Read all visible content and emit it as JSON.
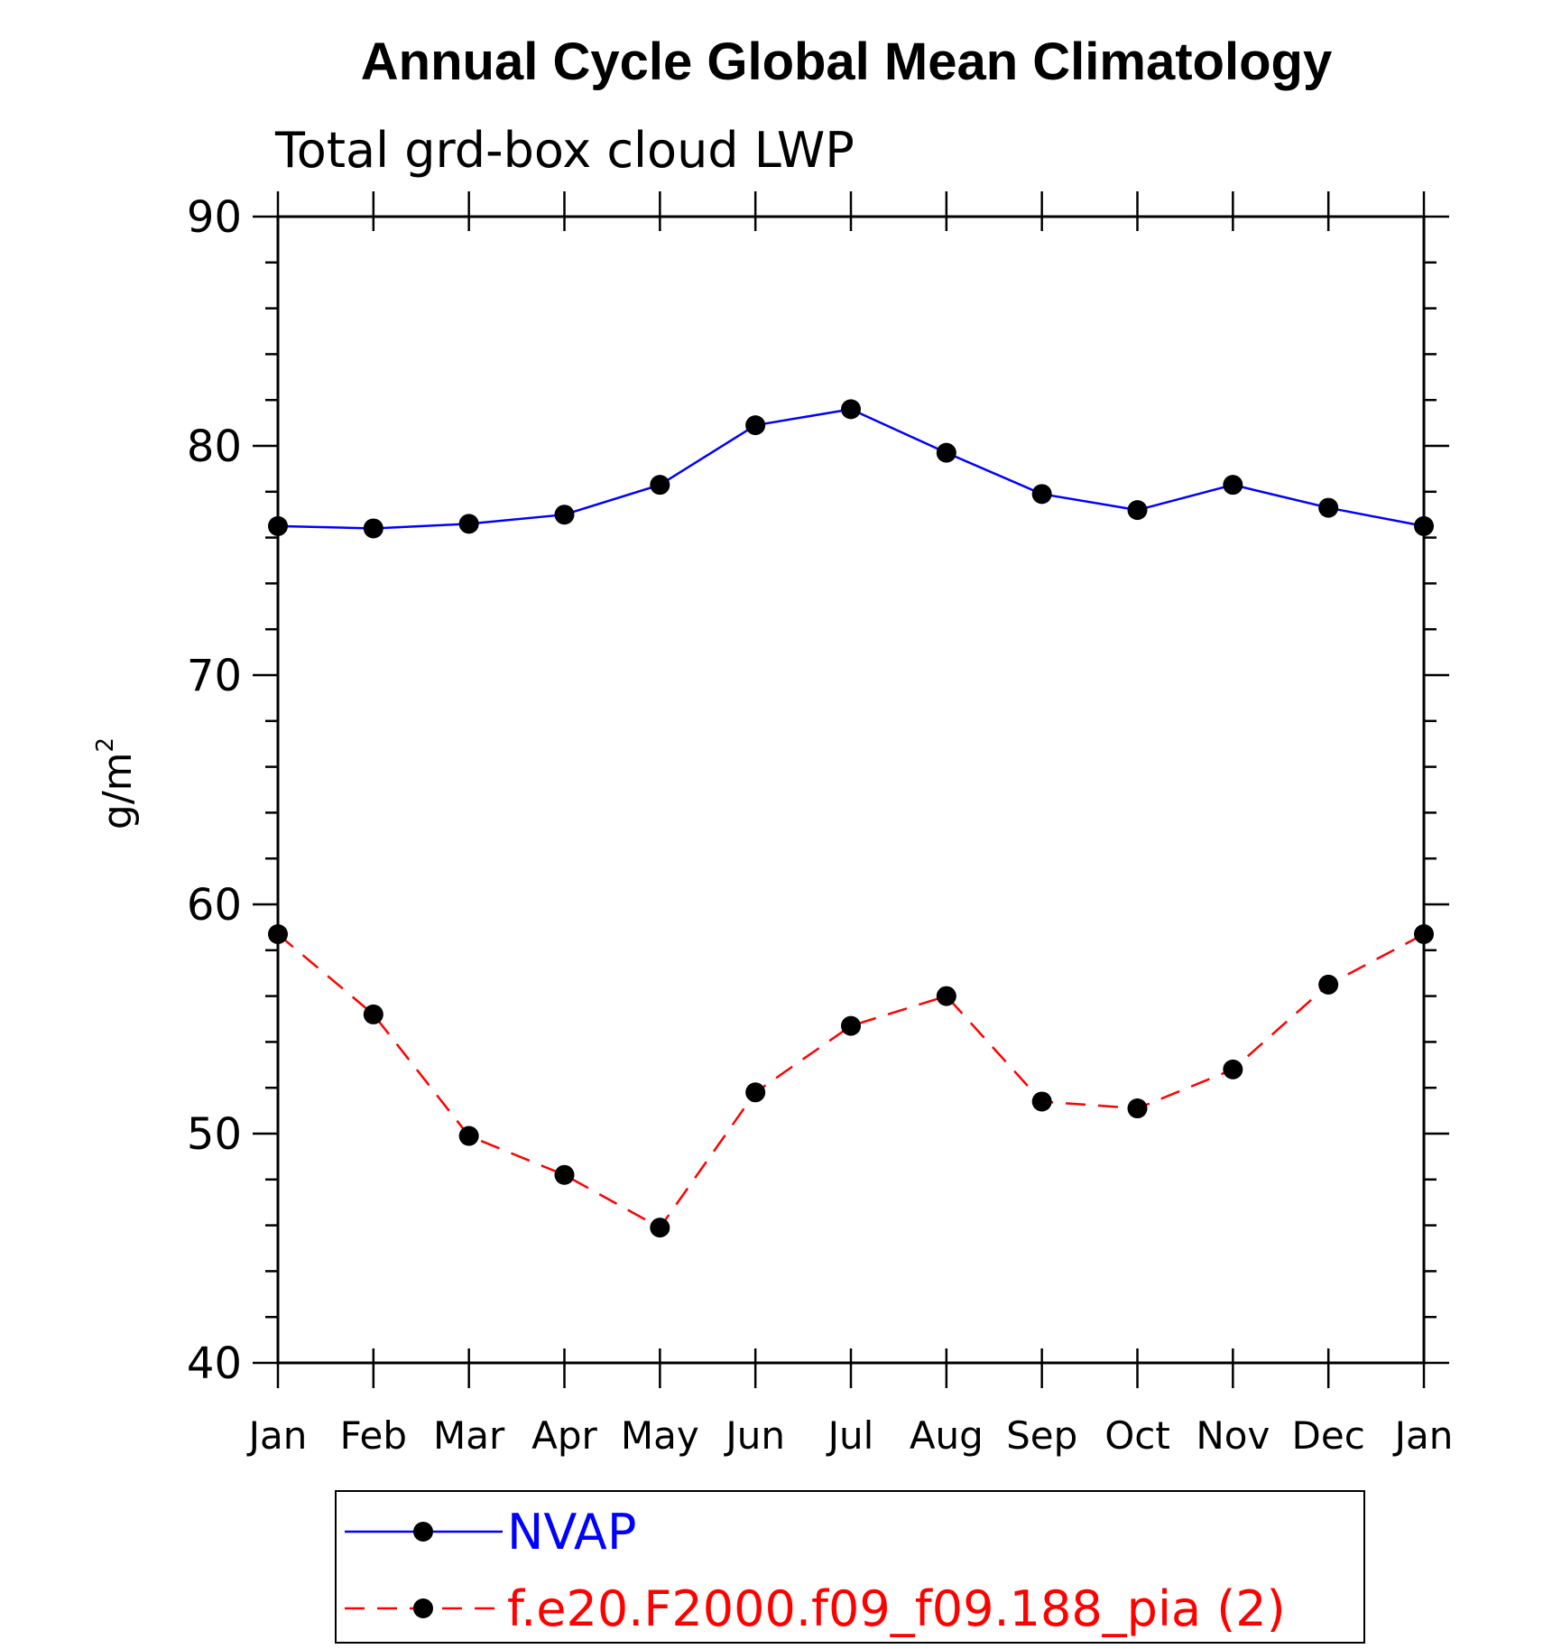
{
  "chart_data": {
    "type": "line",
    "title": "Annual Cycle Global Mean Climatology",
    "subtitle": "Total grd-box cloud LWP",
    "ylabel_base": "g/m",
    "ylabel_sup": "2",
    "xlabel": "",
    "categories": [
      "Jan",
      "Feb",
      "Mar",
      "Apr",
      "May",
      "Jun",
      "Jul",
      "Aug",
      "Sep",
      "Oct",
      "Nov",
      "Dec",
      "Jan"
    ],
    "ylim": [
      40,
      90
    ],
    "yticks": [
      40,
      50,
      60,
      70,
      80,
      90
    ],
    "yminor_step": 2,
    "grid": false,
    "legend_position": "bottom",
    "series": [
      {
        "name": "NVAP",
        "color": "#0000ff",
        "dash": "solid",
        "marker": "filled-circle",
        "marker_color": "#000000",
        "values": [
          76.5,
          76.4,
          76.6,
          77.0,
          78.3,
          80.9,
          81.6,
          79.7,
          77.9,
          77.2,
          78.3,
          77.3,
          76.5
        ]
      },
      {
        "name": "f.e20.F2000.f09_f09.188_pia (2)",
        "color": "#ff0000",
        "dash": "dashed",
        "marker": "filled-circle",
        "marker_color": "#000000",
        "values": [
          58.7,
          55.2,
          49.9,
          48.2,
          45.9,
          51.8,
          54.7,
          56.0,
          51.4,
          51.1,
          52.8,
          56.5,
          58.7
        ]
      }
    ]
  }
}
